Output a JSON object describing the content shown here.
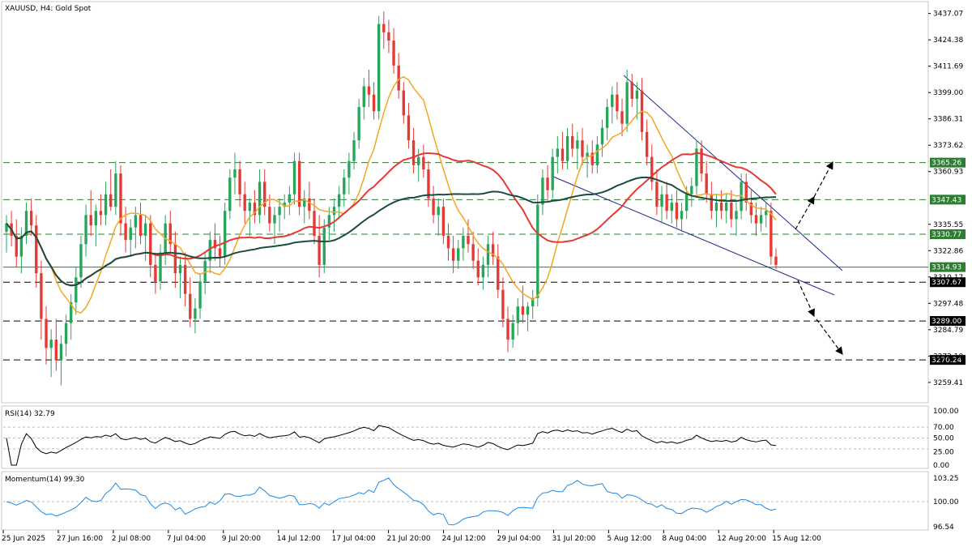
{
  "header": {
    "symbol_label": "XAUUSD, H4:  Gold Spot"
  },
  "chart_data": {
    "type": "candlestick",
    "symbol": "XAUUSD",
    "timeframe": "H4",
    "description": "Gold Spot",
    "price_axis_ticks": [
      3437.07,
      3424.38,
      3411.69,
      3399.0,
      3386.31,
      3373.62,
      3360.93,
      3335.55,
      3322.86,
      3310.17,
      3297.48,
      3284.79,
      3272.1,
      3259.41
    ],
    "ylim": [
      3250.0,
      3442.0
    ],
    "time_axis_labels": [
      "25 Jun 2025",
      "27 Jun 16:00",
      "2 Jul 08:00",
      "7 Jul 04:00",
      "9 Jul 20:00",
      "14 Jul 12:00",
      "17 Jul 04:00",
      "21 Jul 20:00",
      "24 Jul 12:00",
      "29 Jul 04:00",
      "31 Jul 20:00",
      "5 Aug 12:00",
      "8 Aug 04:00",
      "12 Aug 20:00",
      "15 Aug 12:00"
    ],
    "levels": [
      {
        "value": 3365.26,
        "label": "3365.26",
        "color": "#2e7d32"
      },
      {
        "value": 3347.43,
        "label": "3347.43",
        "color": "#2e7d32"
      },
      {
        "value": 3330.77,
        "label": "3330.77",
        "color": "#2e7d32"
      },
      {
        "value": 3307.67,
        "label": "3307.67",
        "color": "#000000"
      },
      {
        "value": 3289.0,
        "label": "3289.00",
        "color": "#000000"
      },
      {
        "value": 3270.24,
        "label": "3270.24",
        "color": "#000000"
      }
    ],
    "current_price": {
      "value": 3314.93,
      "label": "3314.93"
    },
    "candles": [
      [
        3332,
        3340,
        3322,
        3336
      ],
      [
        3336,
        3342,
        3325,
        3330
      ],
      [
        3330,
        3338,
        3315,
        3320
      ],
      [
        3320,
        3334,
        3312,
        3330
      ],
      [
        3330,
        3346,
        3326,
        3342
      ],
      [
        3342,
        3348,
        3330,
        3335
      ],
      [
        3335,
        3340,
        3305,
        3312
      ],
      [
        3312,
        3318,
        3280,
        3290
      ],
      [
        3290,
        3296,
        3268,
        3276
      ],
      [
        3276,
        3285,
        3262,
        3280
      ],
      [
        3280,
        3290,
        3265,
        3270
      ],
      [
        3270,
        3282,
        3258,
        3278
      ],
      [
        3278,
        3292,
        3272,
        3288
      ],
      [
        3288,
        3302,
        3280,
        3298
      ],
      [
        3298,
        3315,
        3292,
        3310
      ],
      [
        3310,
        3330,
        3305,
        3326
      ],
      [
        3326,
        3345,
        3320,
        3340
      ],
      [
        3340,
        3352,
        3330,
        3335
      ],
      [
        3335,
        3345,
        3325,
        3342
      ],
      [
        3342,
        3350,
        3335,
        3340
      ],
      [
        3340,
        3356,
        3335,
        3350
      ],
      [
        3350,
        3362,
        3342,
        3344
      ],
      [
        3344,
        3366,
        3340,
        3360
      ],
      [
        3360,
        3364,
        3330,
        3336
      ],
      [
        3336,
        3344,
        3322,
        3328
      ],
      [
        3328,
        3338,
        3320,
        3334
      ],
      [
        3334,
        3344,
        3324,
        3340
      ],
      [
        3340,
        3346,
        3326,
        3330
      ],
      [
        3330,
        3340,
        3318,
        3336
      ],
      [
        3336,
        3340,
        3310,
        3316
      ],
      [
        3316,
        3322,
        3302,
        3308
      ],
      [
        3308,
        3326,
        3304,
        3322
      ],
      [
        3322,
        3340,
        3316,
        3336
      ],
      [
        3336,
        3342,
        3322,
        3326
      ],
      [
        3326,
        3332,
        3305,
        3312
      ],
      [
        3312,
        3320,
        3300,
        3316
      ],
      [
        3316,
        3322,
        3296,
        3302
      ],
      [
        3302,
        3310,
        3286,
        3290
      ],
      [
        3290,
        3300,
        3283,
        3295
      ],
      [
        3295,
        3312,
        3290,
        3308
      ],
      [
        3308,
        3322,
        3302,
        3318
      ],
      [
        3318,
        3332,
        3312,
        3328
      ],
      [
        3328,
        3336,
        3318,
        3324
      ],
      [
        3324,
        3330,
        3315,
        3320
      ],
      [
        3320,
        3346,
        3316,
        3342
      ],
      [
        3342,
        3362,
        3338,
        3358
      ],
      [
        3358,
        3370,
        3350,
        3362
      ],
      [
        3362,
        3366,
        3344,
        3350
      ],
      [
        3350,
        3356,
        3336,
        3342
      ],
      [
        3342,
        3348,
        3330,
        3346
      ],
      [
        3346,
        3352,
        3336,
        3340
      ],
      [
        3340,
        3362,
        3336,
        3356
      ],
      [
        3356,
        3362,
        3340,
        3344
      ],
      [
        3344,
        3350,
        3332,
        3336
      ],
      [
        3336,
        3344,
        3326,
        3340
      ],
      [
        3340,
        3348,
        3332,
        3344
      ],
      [
        3344,
        3350,
        3338,
        3346
      ],
      [
        3346,
        3354,
        3340,
        3350
      ],
      [
        3350,
        3370,
        3345,
        3366
      ],
      [
        3366,
        3370,
        3340,
        3344
      ],
      [
        3344,
        3352,
        3336,
        3348
      ],
      [
        3348,
        3356,
        3338,
        3342
      ],
      [
        3342,
        3348,
        3326,
        3330
      ],
      [
        3330,
        3340,
        3310,
        3316
      ],
      [
        3316,
        3338,
        3312,
        3334
      ],
      [
        3334,
        3344,
        3328,
        3340
      ],
      [
        3340,
        3348,
        3332,
        3344
      ],
      [
        3344,
        3354,
        3338,
        3350
      ],
      [
        3350,
        3362,
        3344,
        3358
      ],
      [
        3358,
        3370,
        3350,
        3366
      ],
      [
        3366,
        3380,
        3362,
        3376
      ],
      [
        3376,
        3396,
        3372,
        3392
      ],
      [
        3392,
        3406,
        3386,
        3402
      ],
      [
        3402,
        3410,
        3392,
        3398
      ],
      [
        3398,
        3404,
        3386,
        3390
      ],
      [
        3390,
        3436,
        3386,
        3432
      ],
      [
        3432,
        3438,
        3420,
        3428
      ],
      [
        3428,
        3434,
        3418,
        3424
      ],
      [
        3424,
        3430,
        3408,
        3412
      ],
      [
        3412,
        3418,
        3396,
        3400
      ],
      [
        3400,
        3404,
        3384,
        3388
      ],
      [
        3388,
        3394,
        3372,
        3376
      ],
      [
        3376,
        3382,
        3360,
        3364
      ],
      [
        3364,
        3372,
        3356,
        3368
      ],
      [
        3368,
        3374,
        3358,
        3362
      ],
      [
        3362,
        3366,
        3344,
        3348
      ],
      [
        3348,
        3354,
        3336,
        3340
      ],
      [
        3340,
        3348,
        3330,
        3344
      ],
      [
        3344,
        3348,
        3326,
        3330
      ],
      [
        3330,
        3336,
        3318,
        3324
      ],
      [
        3324,
        3330,
        3312,
        3318
      ],
      [
        3318,
        3328,
        3314,
        3324
      ],
      [
        3324,
        3334,
        3318,
        3330
      ],
      [
        3330,
        3338,
        3322,
        3326
      ],
      [
        3326,
        3332,
        3314,
        3318
      ],
      [
        3318,
        3324,
        3306,
        3310
      ],
      [
        3310,
        3320,
        3304,
        3316
      ],
      [
        3316,
        3330,
        3310,
        3326
      ],
      [
        3326,
        3332,
        3316,
        3320
      ],
      [
        3320,
        3326,
        3300,
        3304
      ],
      [
        3304,
        3310,
        3286,
        3290
      ],
      [
        3290,
        3296,
        3274,
        3280
      ],
      [
        3280,
        3292,
        3276,
        3288
      ],
      [
        3288,
        3300,
        3282,
        3296
      ],
      [
        3296,
        3306,
        3288,
        3292
      ],
      [
        3292,
        3298,
        3284,
        3296
      ],
      [
        3296,
        3304,
        3290,
        3300
      ],
      [
        3300,
        3350,
        3296,
        3345
      ],
      [
        3345,
        3362,
        3340,
        3358
      ],
      [
        3358,
        3364,
        3346,
        3352
      ],
      [
        3352,
        3372,
        3348,
        3368
      ],
      [
        3368,
        3378,
        3360,
        3372
      ],
      [
        3372,
        3380,
        3362,
        3366
      ],
      [
        3366,
        3382,
        3362,
        3378
      ],
      [
        3378,
        3384,
        3368,
        3372
      ],
      [
        3372,
        3380,
        3362,
        3376
      ],
      [
        3376,
        3382,
        3364,
        3368
      ],
      [
        3368,
        3374,
        3358,
        3370
      ],
      [
        3370,
        3376,
        3360,
        3364
      ],
      [
        3364,
        3378,
        3360,
        3374
      ],
      [
        3374,
        3386,
        3368,
        3382
      ],
      [
        3382,
        3396,
        3376,
        3392
      ],
      [
        3392,
        3402,
        3384,
        3398
      ],
      [
        3398,
        3404,
        3386,
        3390
      ],
      [
        3390,
        3396,
        3378,
        3384
      ],
      [
        3384,
        3410,
        3380,
        3404
      ],
      [
        3404,
        3408,
        3392,
        3396
      ],
      [
        3396,
        3404,
        3386,
        3400
      ],
      [
        3400,
        3406,
        3376,
        3380
      ],
      [
        3380,
        3386,
        3364,
        3368
      ],
      [
        3368,
        3374,
        3352,
        3356
      ],
      [
        3356,
        3362,
        3340,
        3344
      ],
      [
        3344,
        3354,
        3336,
        3350
      ],
      [
        3350,
        3356,
        3338,
        3342
      ],
      [
        3342,
        3350,
        3336,
        3346
      ],
      [
        3346,
        3352,
        3334,
        3338
      ],
      [
        3338,
        3346,
        3332,
        3342
      ],
      [
        3342,
        3354,
        3338,
        3350
      ],
      [
        3350,
        3358,
        3344,
        3354
      ],
      [
        3354,
        3376,
        3350,
        3372
      ],
      [
        3372,
        3376,
        3356,
        3360
      ],
      [
        3360,
        3366,
        3346,
        3350
      ],
      [
        3350,
        3356,
        3338,
        3342
      ],
      [
        3342,
        3350,
        3334,
        3346
      ],
      [
        3346,
        3352,
        3338,
        3342
      ],
      [
        3342,
        3350,
        3336,
        3346
      ],
      [
        3346,
        3352,
        3334,
        3338
      ],
      [
        3338,
        3346,
        3330,
        3342
      ],
      [
        3342,
        3360,
        3338,
        3356
      ],
      [
        3356,
        3360,
        3342,
        3346
      ],
      [
        3346,
        3352,
        3336,
        3340
      ],
      [
        3340,
        3346,
        3330,
        3336
      ],
      [
        3336,
        3344,
        3332,
        3340
      ],
      [
        3340,
        3346,
        3334,
        3342
      ],
      [
        3342,
        3346,
        3316,
        3320
      ],
      [
        3320,
        3324,
        3314,
        3316
      ]
    ],
    "indicators": {
      "rsi": {
        "label": "RSI(14) 32.79",
        "name": "RSI(14)",
        "value": 32.79,
        "ticks": [
          100.0,
          70.0,
          50.0,
          25.0,
          0.0
        ],
        "levels": [
          70,
          50,
          30
        ]
      },
      "momentum": {
        "label": "Momentum(14) 99.30",
        "name": "Momentum(14)",
        "value": 99.3,
        "ticks": [
          103.25,
          100.0,
          96.54
        ]
      }
    }
  }
}
